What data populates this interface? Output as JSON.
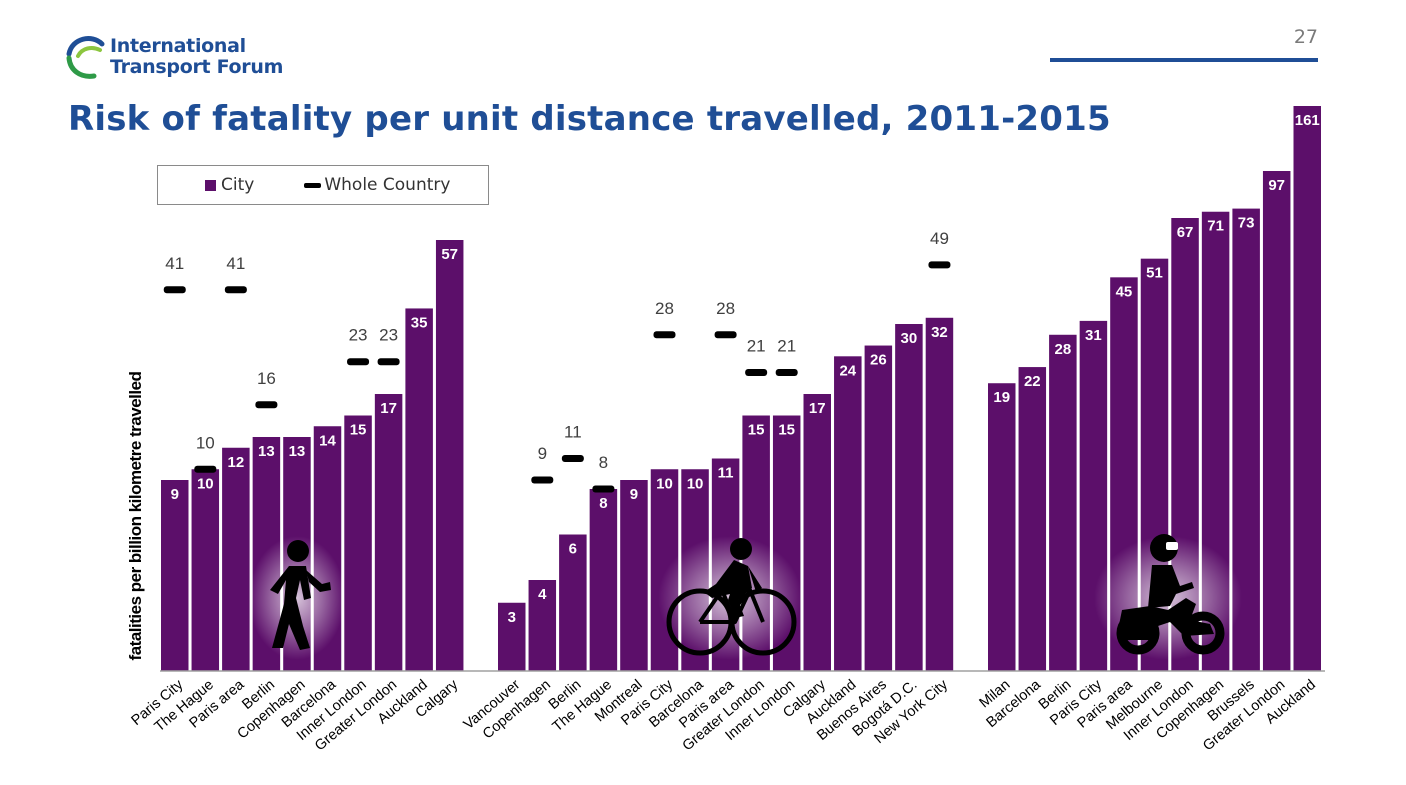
{
  "header": {
    "org_name_line1": "International",
    "org_name_line2": "Transport Forum",
    "page_number": "27",
    "title": "Risk of fatality per unit distance travelled, 2011-2015"
  },
  "colors": {
    "city": "#5c0f6a",
    "country": "#000000",
    "brand": "#1f4e96"
  },
  "chart_data": {
    "type": "bar",
    "title": "Risk of fatality per unit distance travelled, 2011-2015",
    "ylabel": "fatalities per billion kilometre travelled",
    "xlabel": "",
    "legend": {
      "position": "top-left",
      "entries": [
        "City",
        "Whole Country"
      ]
    },
    "grid": false,
    "groups": [
      {
        "icon": "pedestrian-icon",
        "categories": [
          "Paris City",
          "The Hague",
          "Paris area",
          "Berlin",
          "Copenhagen",
          "Barcelona",
          "Inner London",
          "Greater London",
          "Auckland",
          "Calgary"
        ],
        "series": [
          {
            "name": "City",
            "values": [
              9,
              10,
              12,
              13,
              13,
              14,
              15,
              17,
              35,
              57
            ]
          },
          {
            "name": "Whole Country",
            "values": [
              41,
              10,
              41,
              16,
              null,
              null,
              23,
              23,
              null,
              null
            ]
          }
        ]
      },
      {
        "icon": "cyclist-icon",
        "categories": [
          "Vancouver",
          "Copenhagen",
          "Berlin",
          "The Hague",
          "Montreal",
          "Paris City",
          "Barcelona",
          "Paris area",
          "Greater London",
          "Inner London",
          "Calgary",
          "Auckland",
          "Buenos Aires",
          "Bogotá D.C.",
          "New York City"
        ],
        "series": [
          {
            "name": "City",
            "values": [
              3,
              4,
              6,
              8,
              9,
              10,
              10,
              11,
              15,
              15,
              17,
              24,
              26,
              30,
              32
            ]
          },
          {
            "name": "Whole Country",
            "values": [
              null,
              9,
              11,
              8,
              null,
              28,
              null,
              28,
              21,
              21,
              null,
              null,
              null,
              null,
              49
            ]
          }
        ]
      },
      {
        "icon": "motorcyclist-icon",
        "categories": [
          "Milan",
          "Barcelona",
          "Berlin",
          "Paris City",
          "Paris area",
          "Melbourne",
          "Inner London",
          "Copenhagen",
          "Brussels",
          "Greater London",
          "Auckland"
        ],
        "series": [
          {
            "name": "City",
            "values": [
              19,
              22,
              28,
              31,
              45,
              51,
              67,
              71,
              73,
              97,
              161
            ]
          },
          {
            "name": "Whole Country",
            "values": [
              null,
              null,
              null,
              null,
              null,
              null,
              null,
              null,
              null,
              null,
              null
            ]
          }
        ]
      }
    ]
  }
}
